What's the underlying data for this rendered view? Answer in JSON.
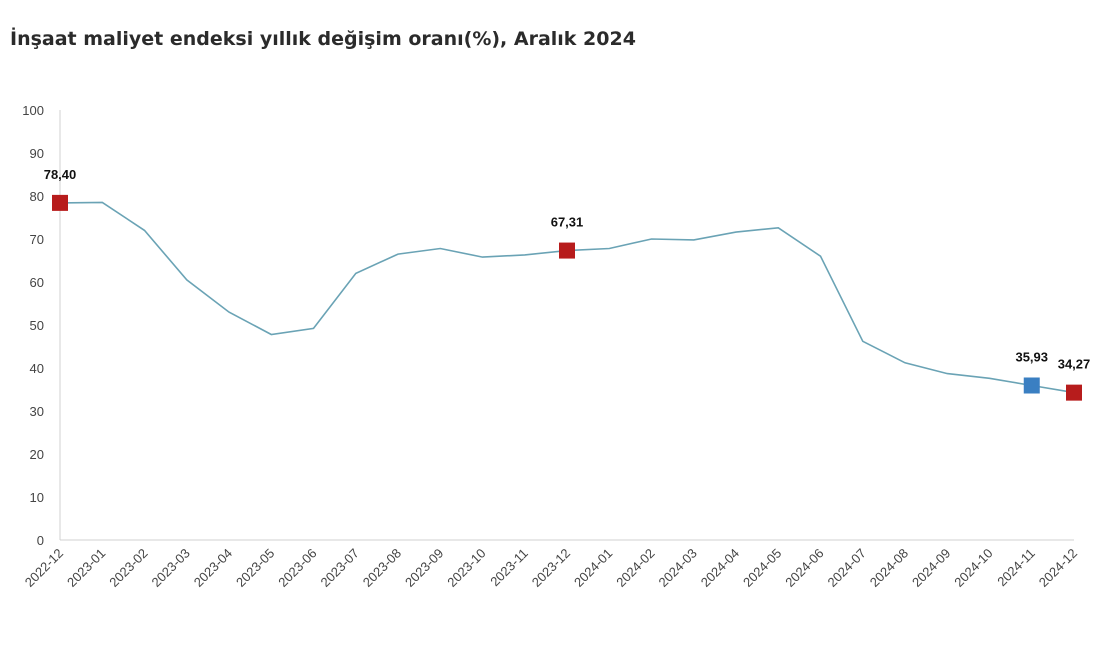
{
  "chart_data": {
    "type": "line",
    "title": "İnşaat maliyet endeksi yıllık değişim oranı(%), Aralık 2024",
    "xlabel": "",
    "ylabel": "",
    "ylim": [
      0,
      100
    ],
    "yticks": [
      "0",
      "10",
      "20",
      "30",
      "40",
      "50",
      "60",
      "70",
      "80",
      "90",
      "100"
    ],
    "grid": false,
    "x": [
      "2022-12",
      "2023-01",
      "2023-02",
      "2023-03",
      "2023-04",
      "2023-05",
      "2023-06",
      "2023-07",
      "2023-08",
      "2023-09",
      "2023-10",
      "2023-11",
      "2023-12",
      "2024-01",
      "2024-02",
      "2024-03",
      "2024-04",
      "2024-05",
      "2024-06",
      "2024-07",
      "2024-08",
      "2024-09",
      "2024-10",
      "2024-11",
      "2024-12"
    ],
    "series": [
      {
        "values": [
          78.4,
          78.5,
          72.0,
          60.5,
          53.0,
          47.8,
          49.2,
          62.0,
          66.5,
          67.8,
          65.8,
          66.3,
          67.31,
          67.8,
          70.0,
          69.8,
          71.6,
          72.6,
          66.0,
          46.2,
          41.2,
          38.7,
          37.6,
          35.93,
          34.27
        ],
        "color": "#6aa3b5"
      }
    ],
    "highlights": [
      {
        "index": 0,
        "label": "78,40",
        "color": "#b71c1c"
      },
      {
        "index": 12,
        "label": "67,31",
        "color": "#b71c1c"
      },
      {
        "index": 23,
        "label": "35,93",
        "color": "#3a7fc2"
      },
      {
        "index": 24,
        "label": "34,27",
        "color": "#b71c1c"
      }
    ]
  }
}
